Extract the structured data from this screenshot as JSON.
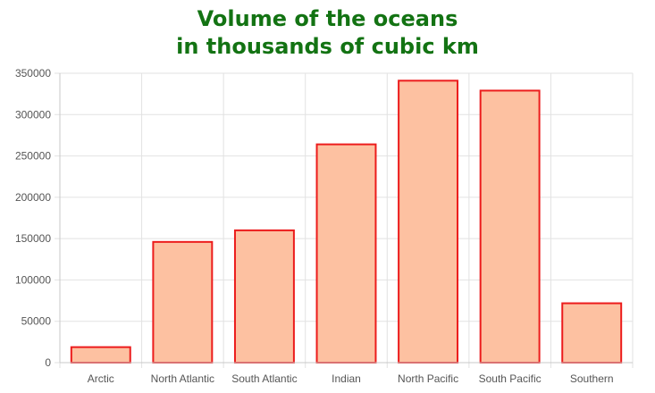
{
  "chart_data": {
    "type": "bar",
    "title_lines": [
      "Volume of the oceans",
      "in thousands of cubic km"
    ],
    "categories": [
      "Arctic",
      "North Atlantic",
      "South Atlantic",
      "Indian",
      "North Pacific",
      "South Pacific",
      "Southern"
    ],
    "values": [
      18750,
      146000,
      160000,
      264000,
      341000,
      329000,
      71800
    ],
    "xlabel": "",
    "ylabel": "",
    "ylim": [
      0,
      350000
    ],
    "yticks": [
      "0",
      "50000",
      "100000",
      "150000",
      "200000",
      "250000",
      "300000",
      "350000"
    ],
    "grid": true,
    "legend": "none",
    "colors": {
      "bar_fill": "#fdc1a1",
      "bar_stroke": "#ec1c1c",
      "grid": "#e2e2e2",
      "title": "#137313"
    }
  }
}
